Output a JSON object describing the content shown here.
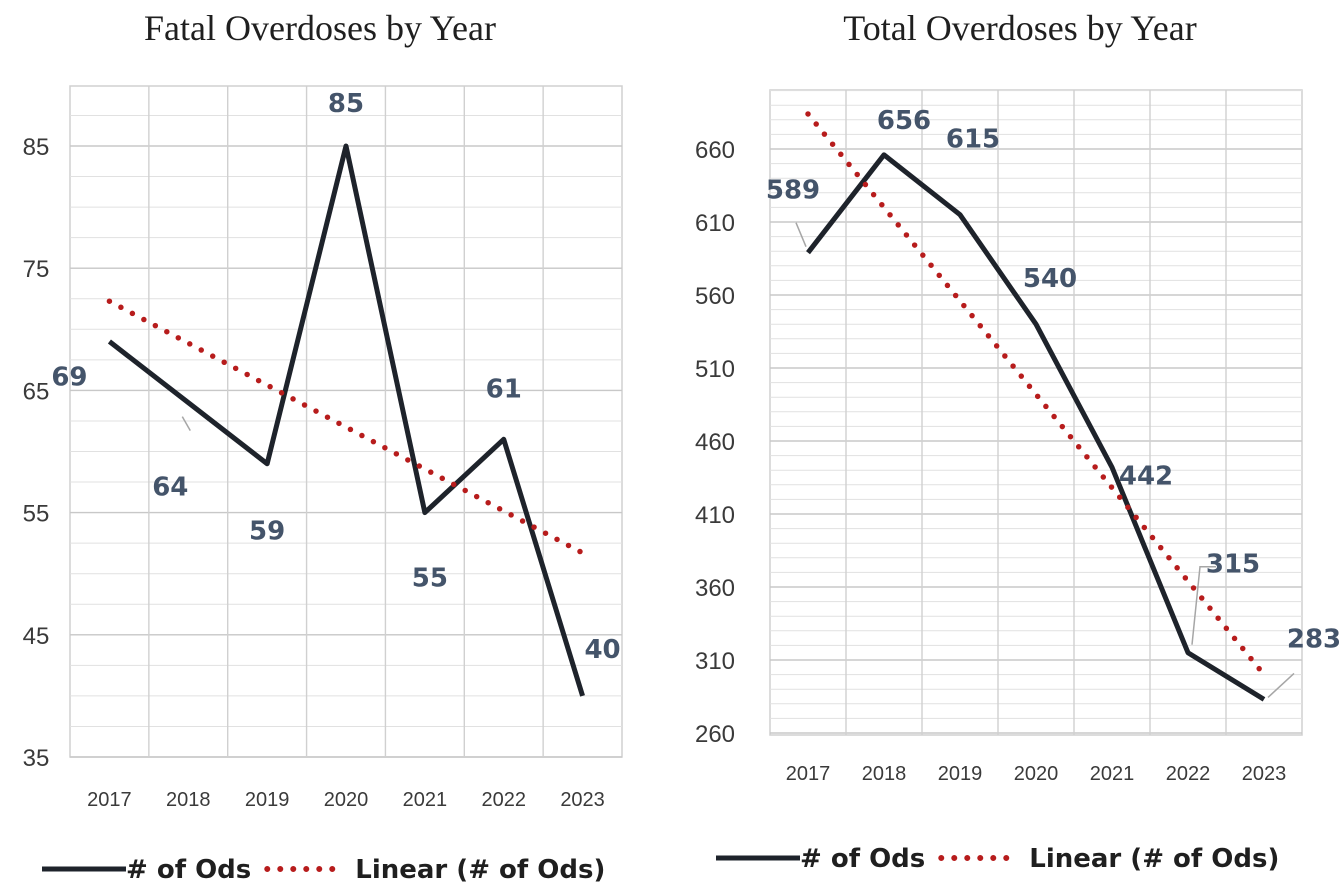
{
  "chart_data": [
    {
      "type": "line",
      "title": "Fatal Overdoses by Year",
      "categories": [
        "2017",
        "2018",
        "2019",
        "2020",
        "2021",
        "2022",
        "2023"
      ],
      "series": [
        {
          "name": "# of Ods",
          "values": [
            69,
            64,
            59,
            85,
            55,
            61,
            40
          ],
          "color": "#1e232b",
          "style": "solid"
        },
        {
          "name": "Linear (# of Ods)",
          "values": [
            72.3,
            68.9,
            65.4,
            62.0,
            58.6,
            55.1,
            51.7
          ],
          "color": "#b71c1c",
          "style": "dotted",
          "trendline": true
        }
      ],
      "data_labels": [
        "69",
        "64",
        "59",
        "85",
        "55",
        "61",
        "40"
      ],
      "yticks": [
        "35",
        "45",
        "55",
        "65",
        "75",
        "85"
      ],
      "ylim": [
        35,
        90
      ],
      "grid": true,
      "legend": "bottom"
    },
    {
      "type": "line",
      "title": "Total Overdoses by Year",
      "categories": [
        "2017",
        "2018",
        "2019",
        "2020",
        "2021",
        "2022",
        "2023"
      ],
      "series": [
        {
          "name": "# of Ods",
          "values": [
            589,
            656,
            615,
            540,
            442,
            315,
            283
          ],
          "color": "#1e232b",
          "style": "solid"
        },
        {
          "name": "Linear (# of Ods)",
          "values": [
            684,
            620,
            556,
            492,
            428,
            364,
            300
          ],
          "color": "#b71c1c",
          "style": "dotted",
          "trendline": true
        }
      ],
      "data_labels": [
        "589",
        "656",
        "615",
        "540",
        "442",
        "315",
        "283"
      ],
      "yticks": [
        "260",
        "310",
        "360",
        "410",
        "460",
        "510",
        "560",
        "610",
        "660"
      ],
      "ylim": [
        260,
        700
      ],
      "grid": true,
      "legend": "bottom"
    }
  ]
}
